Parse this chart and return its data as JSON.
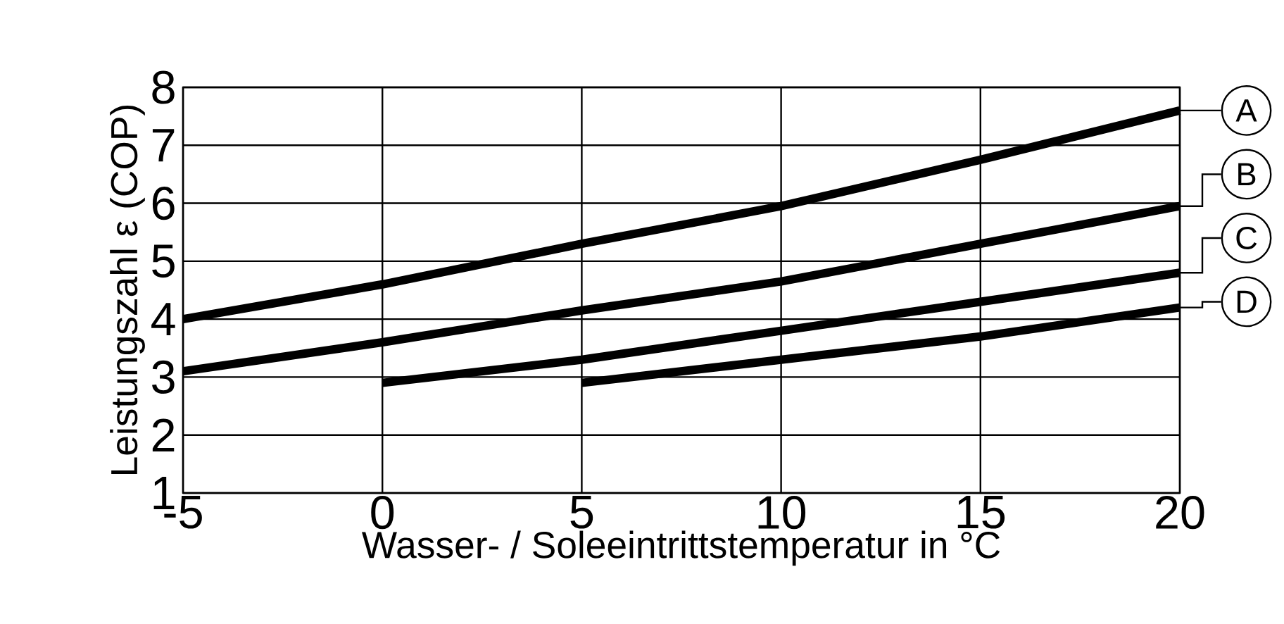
{
  "chart_data": {
    "type": "line",
    "xlabel": "Wasser- / Soleeintrittstemperatur in °C",
    "ylabel": "Leistungszahl ε (COP)",
    "xlim": [
      -5,
      20
    ],
    "ylim": [
      1,
      8
    ],
    "xticks": [
      -5,
      0,
      5,
      10,
      15,
      20
    ],
    "yticks": [
      1,
      2,
      3,
      4,
      5,
      6,
      7,
      8
    ],
    "grid": true,
    "legend": "right",
    "series": [
      {
        "name": "A",
        "color": "#000000",
        "x": [
          -5,
          0,
          5,
          10,
          15,
          20
        ],
        "values": [
          4.0,
          4.6,
          5.3,
          5.95,
          6.75,
          7.6
        ]
      },
      {
        "name": "B",
        "color": "#000000",
        "x": [
          -5,
          0,
          5,
          10,
          15,
          20
        ],
        "values": [
          3.1,
          3.6,
          4.15,
          4.65,
          5.3,
          5.95
        ]
      },
      {
        "name": "C",
        "color": "#000000",
        "x": [
          0,
          5,
          10,
          15,
          20
        ],
        "values": [
          2.9,
          3.3,
          3.8,
          4.3,
          4.8
        ]
      },
      {
        "name": "D",
        "color": "#000000",
        "x": [
          5,
          10,
          15,
          20
        ],
        "values": [
          2.9,
          3.3,
          3.7,
          4.2
        ]
      }
    ]
  }
}
